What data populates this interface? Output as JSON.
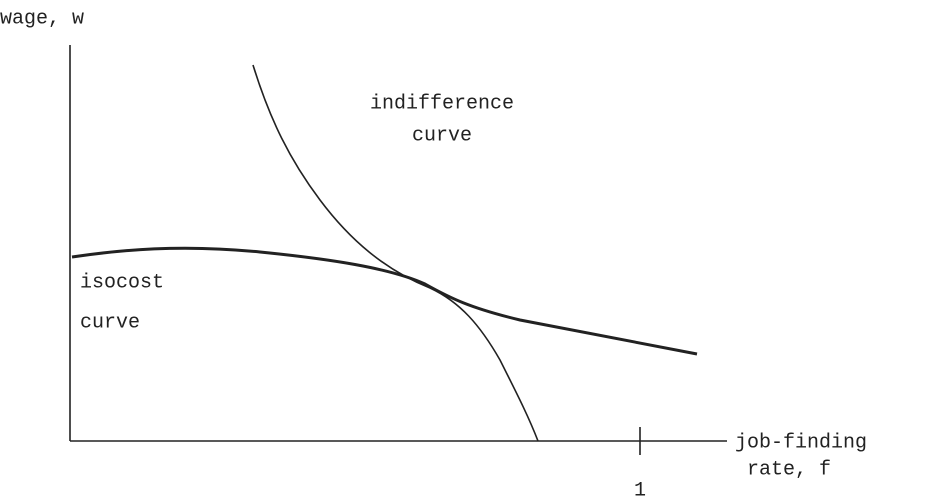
{
  "axes": {
    "y_label": "wage, w",
    "x_label": [
      "job-finding",
      "rate, f"
    ],
    "x_tick": "1"
  },
  "labels": {
    "indifference": [
      "indifference",
      "curve"
    ],
    "isocost": [
      "isocost",
      "curve"
    ]
  }
}
